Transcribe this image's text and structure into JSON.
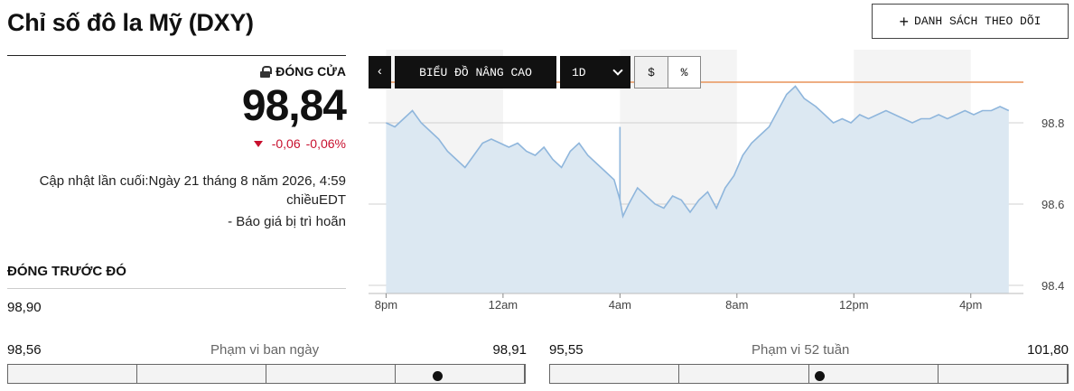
{
  "header": {
    "title": "Chỉ số đô la Mỹ (DXY)",
    "watchlist_label": "DANH SÁCH THEO DÕI"
  },
  "quote": {
    "status_label": "ĐÓNG CỬA",
    "price": "98,84",
    "change": "-0,06",
    "change_pct": "-0,06%",
    "updated_line1": "Cập nhật lần cuối:Ngày 21 tháng 8 năm 2026, 4:59",
    "updated_line2": "chiềuEDT",
    "delayed": "-  Báo giá bị trì hoãn",
    "change_color": "#c8102e"
  },
  "previous_close": {
    "label": "ĐÓNG TRƯỚC ĐÓ",
    "value": "98,90"
  },
  "day_range": {
    "low": "98,56",
    "label": "Phạm vi ban ngày",
    "high": "98,91",
    "marker_fraction": 0.83
  },
  "week52_range": {
    "low": "95,55",
    "label": "Phạm vi 52 tuần",
    "high": "101,80",
    "marker_fraction": 0.52
  },
  "toolbar": {
    "back_icon": "chevron-left-icon",
    "advanced_label": "BIỂU ĐỒ NÂNG CAO",
    "period_label": "1D",
    "dollar_label": "$",
    "percent_label": "%"
  },
  "chart_data": {
    "type": "area",
    "x_ticks": [
      "8pm",
      "12am",
      "4am",
      "8am",
      "12pm",
      "4pm"
    ],
    "y_ticks": [
      "98.8",
      "98.6",
      "98.4"
    ],
    "ylim": [
      98.38,
      98.98
    ],
    "previous_close_line": 98.9,
    "grid": true,
    "line_color": "#8fb6dc",
    "fill_color": "#dce8f2",
    "ref_line_color": "#e8935a",
    "x": [
      0,
      0.3,
      0.6,
      0.9,
      1.2,
      1.5,
      1.8,
      2.1,
      2.4,
      2.7,
      3.0,
      3.3,
      3.6,
      3.9,
      4.2,
      4.5,
      4.8,
      5.1,
      5.4,
      5.7,
      6.0,
      6.3,
      6.6,
      6.9,
      7.2,
      7.5,
      7.8,
      8.0,
      8.1,
      8.3,
      8.6,
      8.9,
      9.2,
      9.5,
      9.8,
      10.1,
      10.4,
      10.7,
      11.0,
      11.3,
      11.6,
      11.9,
      12.2,
      12.5,
      12.8,
      13.1,
      13.4,
      13.7,
      14.0,
      14.3,
      14.7,
      15.0,
      15.3,
      15.6,
      15.9,
      16.2,
      16.5,
      16.8,
      17.1,
      17.4,
      17.7,
      18.0,
      18.3,
      18.6,
      18.9,
      19.2,
      19.5,
      19.8,
      20.1,
      20.4,
      20.7,
      21.0,
      21.3
    ],
    "values": [
      98.8,
      98.79,
      98.81,
      98.83,
      98.8,
      98.78,
      98.76,
      98.73,
      98.71,
      98.69,
      98.72,
      98.75,
      98.76,
      98.75,
      98.74,
      98.75,
      98.73,
      98.72,
      98.74,
      98.71,
      98.69,
      98.73,
      98.75,
      98.72,
      98.7,
      98.68,
      98.66,
      98.61,
      98.57,
      98.6,
      98.64,
      98.62,
      98.6,
      98.59,
      98.62,
      98.61,
      98.58,
      98.61,
      98.63,
      98.59,
      98.64,
      98.67,
      98.72,
      98.75,
      98.77,
      98.79,
      98.83,
      98.87,
      98.89,
      98.86,
      98.84,
      98.82,
      98.8,
      98.81,
      98.8,
      98.82,
      98.81,
      98.82,
      98.83,
      98.82,
      98.81,
      98.8,
      98.81,
      98.81,
      98.82,
      98.81,
      98.82,
      98.83,
      98.82,
      98.83,
      98.83,
      98.84,
      98.83
    ],
    "spike": {
      "x": 8.0,
      "low": 98.61,
      "high": 98.79
    }
  }
}
